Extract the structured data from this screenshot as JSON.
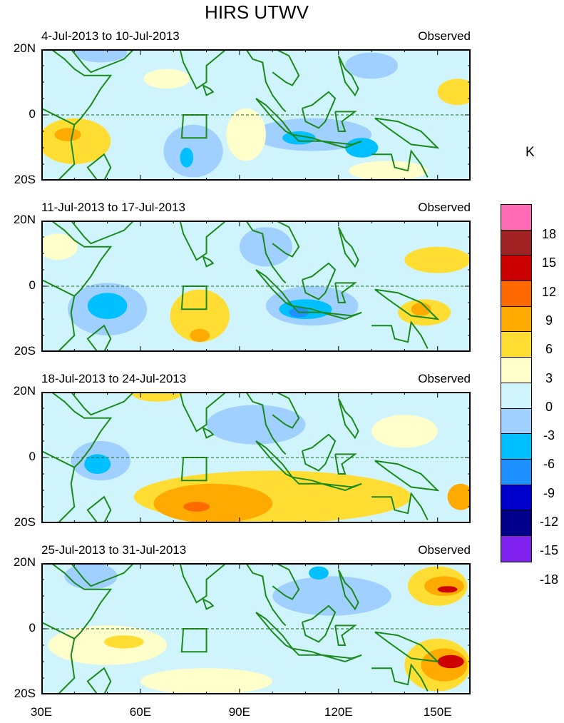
{
  "title": "HIRS UTWV",
  "units": "K",
  "panels": [
    {
      "title": "4-Jul-2013 to 10-Jul-2013",
      "label": "Observed"
    },
    {
      "title": "11-Jul-2013 to 17-Jul-2013",
      "label": "Observed"
    },
    {
      "title": "18-Jul-2013 to 24-Jul-2013",
      "label": "Observed"
    },
    {
      "title": "25-Jul-2013 to 31-Jul-2013",
      "label": "Observed"
    }
  ],
  "y_ticks": [
    "20N",
    "0",
    "20S"
  ],
  "x_ticks": [
    "30E",
    "60E",
    "90E",
    "120E",
    "150E"
  ],
  "colorbar": {
    "labels": [
      "18",
      "15",
      "12",
      "9",
      "6",
      "3",
      "0",
      "-3",
      "-6",
      "-9",
      "-12",
      "-15",
      "-18"
    ],
    "colors": [
      "#ff6ab4",
      "#a02222",
      "#cc0000",
      "#ff6a00",
      "#ffaa00",
      "#ffdd33",
      "#ffffcc",
      "#d0f4fc",
      "#a0d0ff",
      "#00c0ff",
      "#1e90ff",
      "#0000cd",
      "#00008b",
      "#8020ee"
    ]
  },
  "chart_data": {
    "type": "heatmap",
    "title": "HIRS UTWV",
    "xlim": [
      30,
      160
    ],
    "ylim": [
      -20,
      20
    ],
    "levels": [
      -18,
      -15,
      -12,
      -9,
      -6,
      -3,
      0,
      3,
      6,
      9,
      12,
      15,
      18
    ],
    "background_value": -1,
    "panels": [
      {
        "anomalies": [
          {
            "lon": 40,
            "lat": -8,
            "rx": 11,
            "ry": 7,
            "value": 4
          },
          {
            "lon": 38,
            "lat": -6,
            "rx": 4,
            "ry": 2,
            "value": 7
          },
          {
            "lon": 76,
            "lat": -11,
            "rx": 9,
            "ry": 8,
            "value": -4
          },
          {
            "lon": 74,
            "lat": -13,
            "rx": 2,
            "ry": 3,
            "value": -7
          },
          {
            "lon": 112,
            "lat": -6,
            "rx": 18,
            "ry": 5,
            "value": -4
          },
          {
            "lon": 108,
            "lat": -7,
            "rx": 5,
            "ry": 2,
            "value": -7
          },
          {
            "lon": 127,
            "lat": -10,
            "rx": 5,
            "ry": 3,
            "value": -7
          },
          {
            "lon": 68,
            "lat": 11,
            "rx": 7,
            "ry": 3,
            "value": 1
          },
          {
            "lon": 92,
            "lat": -6,
            "rx": 6,
            "ry": 8,
            "value": 1
          },
          {
            "lon": 156,
            "lat": 7,
            "rx": 6,
            "ry": 4,
            "value": 4
          },
          {
            "lon": 135,
            "lat": -17,
            "rx": 12,
            "ry": 3,
            "value": 1
          },
          {
            "lon": 48,
            "lat": 19,
            "rx": 8,
            "ry": 3,
            "value": -4
          },
          {
            "lon": 130,
            "lat": 15,
            "rx": 8,
            "ry": 4,
            "value": -4
          }
        ]
      },
      {
        "anomalies": [
          {
            "lon": 50,
            "lat": -7,
            "rx": 12,
            "ry": 8,
            "value": -4
          },
          {
            "lon": 50,
            "lat": -6,
            "rx": 6,
            "ry": 4,
            "value": -7
          },
          {
            "lon": 78,
            "lat": -9,
            "rx": 9,
            "ry": 8,
            "value": 4
          },
          {
            "lon": 78,
            "lat": -15,
            "rx": 3,
            "ry": 2,
            "value": 7
          },
          {
            "lon": 112,
            "lat": -6,
            "rx": 14,
            "ry": 6,
            "value": -4
          },
          {
            "lon": 110,
            "lat": -7,
            "rx": 8,
            "ry": 3,
            "value": -8
          },
          {
            "lon": 108,
            "lat": -8,
            "rx": 3,
            "ry": 1.5,
            "value": -10
          },
          {
            "lon": 146,
            "lat": -8,
            "rx": 8,
            "ry": 4,
            "value": 4
          },
          {
            "lon": 145,
            "lat": -7,
            "rx": 3,
            "ry": 2,
            "value": 7
          },
          {
            "lon": 150,
            "lat": 8,
            "rx": 10,
            "ry": 4,
            "value": 4
          },
          {
            "lon": 35,
            "lat": 12,
            "rx": 6,
            "ry": 4,
            "value": 1
          },
          {
            "lon": 98,
            "lat": 12,
            "rx": 8,
            "ry": 6,
            "value": -4
          }
        ]
      },
      {
        "anomalies": [
          {
            "lon": 100,
            "lat": -12,
            "rx": 42,
            "ry": 8,
            "value": 4
          },
          {
            "lon": 82,
            "lat": -14,
            "rx": 18,
            "ry": 6,
            "value": 7
          },
          {
            "lon": 77,
            "lat": -15,
            "rx": 4,
            "ry": 1.5,
            "value": 10
          },
          {
            "lon": 48,
            "lat": -1,
            "rx": 9,
            "ry": 6,
            "value": -4
          },
          {
            "lon": 47,
            "lat": -2,
            "rx": 4,
            "ry": 3,
            "value": -7
          },
          {
            "lon": 95,
            "lat": 10,
            "rx": 15,
            "ry": 6,
            "value": -4
          },
          {
            "lon": 157,
            "lat": -12,
            "rx": 4,
            "ry": 4,
            "value": 7
          },
          {
            "lon": 140,
            "lat": 8,
            "rx": 10,
            "ry": 5,
            "value": 1
          },
          {
            "lon": 65,
            "lat": 20,
            "rx": 8,
            "ry": 3,
            "value": 4
          }
        ]
      },
      {
        "anomalies": [
          {
            "lon": 150,
            "lat": 13,
            "rx": 9,
            "ry": 6,
            "value": 5
          },
          {
            "lon": 152,
            "lat": 13,
            "rx": 6,
            "ry": 3,
            "value": 9
          },
          {
            "lon": 153,
            "lat": 12,
            "rx": 3,
            "ry": 1,
            "value": 13
          },
          {
            "lon": 150,
            "lat": -11,
            "rx": 10,
            "ry": 8,
            "value": 5
          },
          {
            "lon": 152,
            "lat": -11,
            "rx": 7,
            "ry": 5,
            "value": 9
          },
          {
            "lon": 154,
            "lat": -10,
            "rx": 4,
            "ry": 2,
            "value": 13
          },
          {
            "lon": 50,
            "lat": -5,
            "rx": 18,
            "ry": 6,
            "value": 1
          },
          {
            "lon": 55,
            "lat": -4,
            "rx": 6,
            "ry": 2,
            "value": 4
          },
          {
            "lon": 118,
            "lat": 10,
            "rx": 18,
            "ry": 6,
            "value": -4
          },
          {
            "lon": 114,
            "lat": 17,
            "rx": 3,
            "ry": 2,
            "value": -7
          },
          {
            "lon": 80,
            "lat": -16,
            "rx": 20,
            "ry": 4,
            "value": 1
          },
          {
            "lon": 45,
            "lat": 16,
            "rx": 8,
            "ry": 4,
            "value": -4
          }
        ]
      }
    ]
  }
}
